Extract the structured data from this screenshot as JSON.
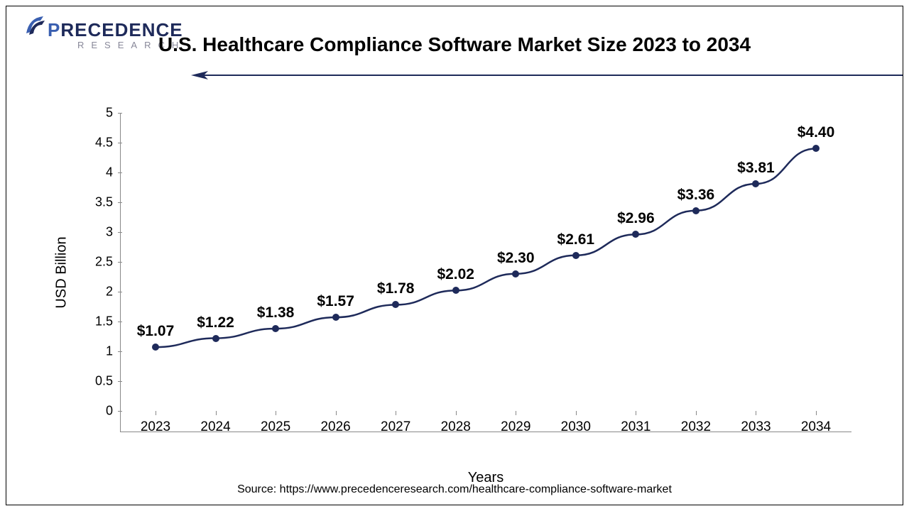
{
  "logo": {
    "brand_pre": "P",
    "brand_mid": "RECEDENCE",
    "brand_sub": "RESEARCH",
    "color_primary": "#1e2a5a",
    "color_accent": "#3a5fb0"
  },
  "title": "U.S. Healthcare Compliance Software Market Size 2023 to 2034",
  "arrow": {
    "color": "#1e2a5a"
  },
  "chart": {
    "type": "line",
    "x_label": "Years",
    "y_label": "USD Billion",
    "y_min": 0,
    "y_max": 5,
    "y_tick_step": 0.5,
    "y_ticks": [
      "0",
      "0.5",
      "1",
      "1.5",
      "2",
      "2.5",
      "3",
      "3.5",
      "4",
      "4.5",
      "5"
    ],
    "categories": [
      "2023",
      "2024",
      "2025",
      "2026",
      "2027",
      "2028",
      "2029",
      "2030",
      "2031",
      "2032",
      "2033",
      "2034"
    ],
    "values": [
      1.07,
      1.22,
      1.38,
      1.57,
      1.78,
      2.02,
      2.3,
      2.61,
      2.96,
      3.36,
      3.81,
      4.4
    ],
    "data_labels": [
      "$1.07",
      "$1.22",
      "$1.38",
      "$1.57",
      "$1.78",
      "$2.02",
      "$2.30",
      "$2.61",
      "$2.96",
      "$3.36",
      "$3.81",
      "$4.40"
    ],
    "line_color": "#1e2a5a",
    "line_width": 2.5,
    "marker_color": "#1e2a5a",
    "marker_size": 10,
    "background_color": "#ffffff",
    "axis_color": "#888888",
    "tick_fontsize": 18,
    "label_fontsize": 20,
    "data_label_fontsize": 21,
    "title_fontsize": 28
  },
  "source": "Source: https://www.precedenceresearch.com/healthcare-compliance-software-market"
}
